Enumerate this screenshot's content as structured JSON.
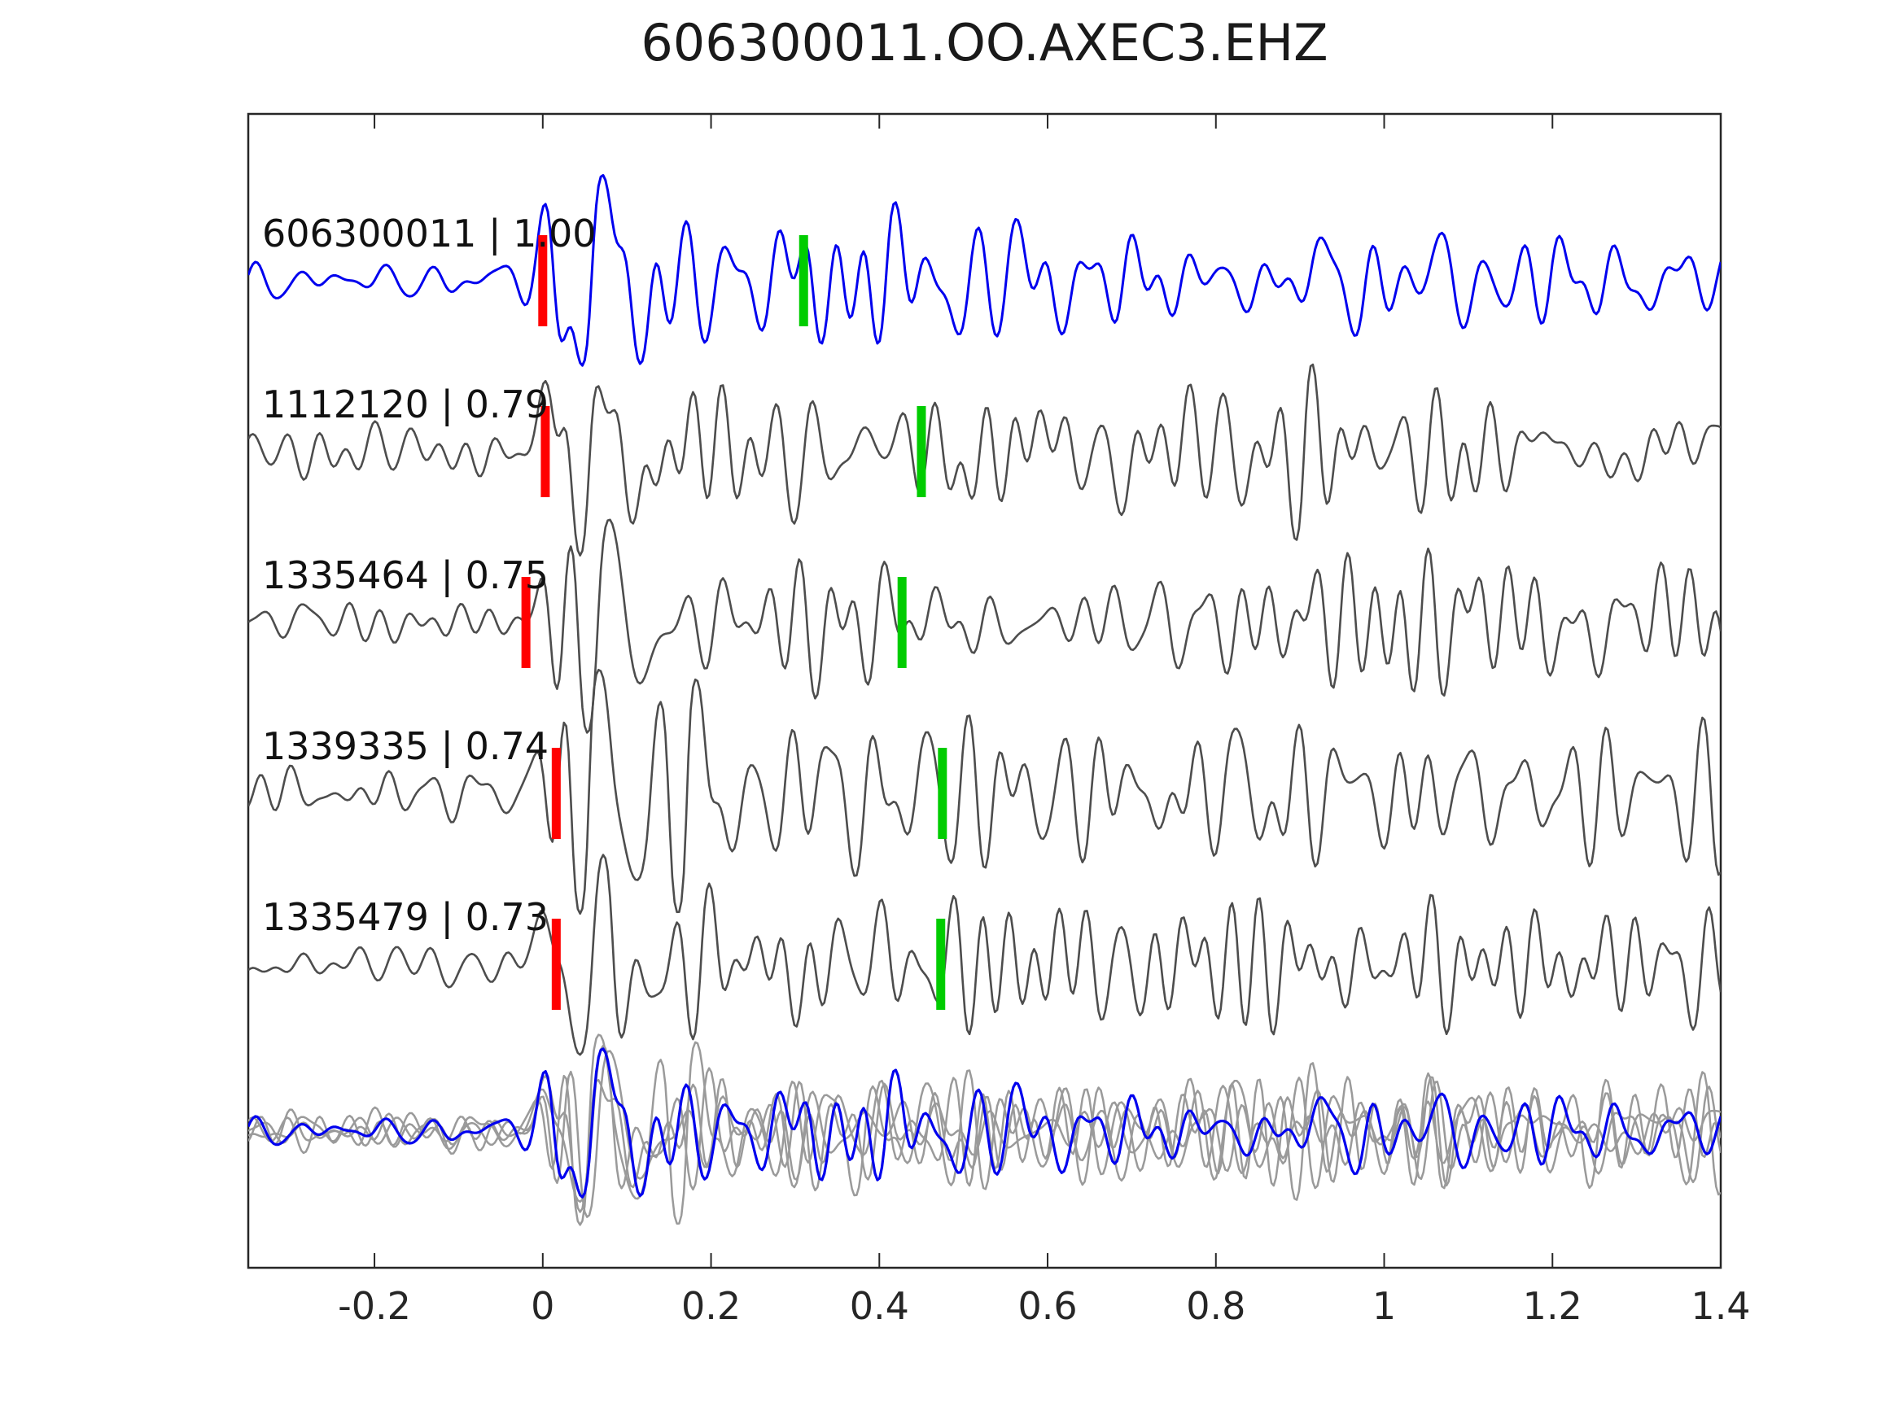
{
  "title": "606300011.OO.AXEC3.EHZ",
  "colors": {
    "reference_trace": "#0000ee",
    "candidate_trace": "#4d4d4d",
    "overlay_gray_trace": "#9a9a9a",
    "pick_marker_red": "#ff0000",
    "pick_marker_green": "#00cc00",
    "axis": "#262626",
    "text": "#1a1a1a",
    "background": "#ffffff"
  },
  "chart_data": {
    "type": "line",
    "title": "606300011.OO.AXEC3.EHZ",
    "xlabel": "",
    "ylabel": "",
    "xlim": [
      -0.35,
      1.4
    ],
    "xticks": [
      -0.2,
      0,
      0.2,
      0.4,
      0.6,
      0.8,
      1,
      1.2,
      1.4
    ],
    "xtick_labels": [
      "-0.2",
      "0",
      "0.2",
      "0.4",
      "0.6",
      "0.8",
      "1",
      "1.2",
      "1.4"
    ],
    "y_axis_ticks": "none",
    "grid": "off",
    "legend": "none",
    "description": "Stack of seismic waveform traces; each trace has a red pick bar near t=0 and a green pick bar; bottom panel overlays all gray candidate traces with the blue reference trace.",
    "traces": [
      {
        "row": 0,
        "label": "606300011 | 1.00",
        "id": "606300011",
        "correlation": 1.0,
        "color_key": "reference_trace",
        "pick_red_t": 0.0,
        "pick_green_t": 0.31,
        "seed": 7
      },
      {
        "row": 1,
        "label": "1112120 | 0.79",
        "id": "1112120",
        "correlation": 0.79,
        "color_key": "candidate_trace",
        "pick_red_t": 0.003,
        "pick_green_t": 0.45,
        "seed": 12
      },
      {
        "row": 2,
        "label": "1335464 | 0.75",
        "id": "1335464",
        "correlation": 0.75,
        "color_key": "candidate_trace",
        "pick_red_t": -0.02,
        "pick_green_t": 0.427,
        "seed": 21
      },
      {
        "row": 3,
        "label": "1339335 | 0.74",
        "id": "1339335",
        "correlation": 0.74,
        "color_key": "candidate_trace",
        "pick_red_t": 0.016,
        "pick_green_t": 0.475,
        "seed": 33
      },
      {
        "row": 4,
        "label": "1335479 | 0.73",
        "id": "1335479",
        "correlation": 0.73,
        "color_key": "candidate_trace",
        "pick_red_t": 0.016,
        "pick_green_t": 0.473,
        "seed": 44
      }
    ],
    "overlay_panel": {
      "row": 5,
      "components": [
        "gray overlays of all candidate traces",
        "blue reference trace on top"
      ],
      "amplitude_factor": 0.78
    }
  }
}
